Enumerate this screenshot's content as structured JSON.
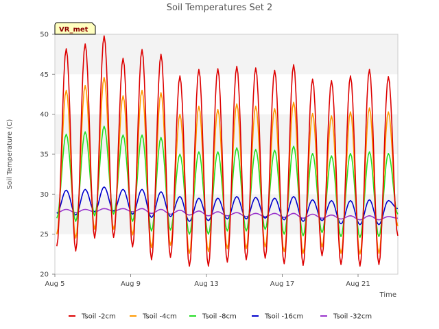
{
  "chart_data": {
    "type": "line",
    "title": "Soil Temperatures Set 2",
    "xlabel": "Time",
    "ylabel": "Soil Temperature (C)",
    "badge": "VR_met",
    "ylim": [
      20,
      50
    ],
    "xlim": [
      5,
      23.1
    ],
    "y_ticks": [
      20,
      25,
      30,
      35,
      40,
      45,
      50
    ],
    "x_ticks": [
      {
        "value": 5,
        "label": "Aug 5"
      },
      {
        "value": 9,
        "label": "Aug 9"
      },
      {
        "value": 13,
        "label": "Aug 13"
      },
      {
        "value": 17,
        "label": "Aug 17"
      },
      {
        "value": 21,
        "label": "Aug 21"
      }
    ],
    "grid": "horizontal banded",
    "legend_position": "bottom",
    "x_unit": "day of August (peak time of daily maximum)",
    "series": [
      {
        "name": "Tsoil -2cm",
        "color": "#dd0000",
        "mean_level": 35,
        "peaks": [
          48.2,
          48.8,
          49.8,
          47.0,
          48.1,
          47.5,
          44.8,
          45.6,
          45.7,
          46.0,
          45.8,
          45.5,
          46.2,
          44.4,
          44.2,
          44.8,
          45.6,
          44.7
        ],
        "troughs": [
          23.5,
          22.9,
          24.5,
          24.6,
          23.4,
          21.8,
          22.1,
          21.0,
          21.0,
          21.5,
          21.8,
          22.0,
          21.3,
          21.1,
          22.3,
          21.2,
          21.0,
          21.2,
          24.8
        ]
      },
      {
        "name": "Tsoil -4cm",
        "color": "#ff9900",
        "peaks": [
          43.0,
          43.6,
          44.6,
          42.3,
          43.0,
          42.7,
          40.0,
          41.0,
          40.6,
          41.3,
          41.0,
          40.7,
          41.5,
          40.1,
          39.8,
          40.3,
          40.8,
          40.3
        ],
        "troughs": [
          25.0,
          24.5,
          25.6,
          25.6,
          24.9,
          23.3,
          23.6,
          22.6,
          22.8,
          23.2,
          23.2,
          23.4,
          22.8,
          22.6,
          23.4,
          22.6,
          22.5,
          22.6,
          26.0
        ]
      },
      {
        "name": "Tsoil -8cm",
        "color": "#22dd22",
        "peaks": [
          37.5,
          37.8,
          38.5,
          37.4,
          37.4,
          37.1,
          35.0,
          35.3,
          35.3,
          35.8,
          35.6,
          35.5,
          36.0,
          35.1,
          34.8,
          35.1,
          35.3,
          35.1
        ],
        "troughs": [
          27.0,
          26.6,
          27.3,
          27.5,
          26.6,
          25.4,
          25.5,
          25.0,
          25.0,
          25.4,
          25.4,
          25.6,
          25.0,
          24.8,
          25.2,
          24.7,
          24.6,
          24.7,
          27.5
        ]
      },
      {
        "name": "Tsoil -16cm",
        "color": "#0000cc",
        "peaks": [
          30.5,
          30.6,
          30.9,
          30.6,
          30.6,
          30.3,
          29.7,
          29.5,
          29.5,
          29.7,
          29.6,
          29.5,
          29.7,
          29.3,
          29.2,
          29.2,
          29.3,
          29.2
        ],
        "troughs": [
          27.6,
          27.4,
          27.8,
          27.9,
          27.5,
          27.1,
          27.2,
          26.6,
          26.7,
          26.9,
          26.9,
          27.0,
          26.8,
          26.6,
          26.7,
          26.3,
          26.2,
          26.2,
          28.2
        ]
      },
      {
        "name": "Tsoil -32cm",
        "color": "#9933cc",
        "peaks": [
          28.1,
          28.1,
          28.2,
          28.2,
          28.2,
          28.1,
          28.0,
          27.9,
          27.8,
          27.7,
          27.6,
          27.6,
          27.6,
          27.5,
          27.4,
          27.3,
          27.3,
          27.2
        ],
        "troughs": [
          27.7,
          27.7,
          27.8,
          27.9,
          27.8,
          27.6,
          27.5,
          27.4,
          27.3,
          27.3,
          27.2,
          27.2,
          27.1,
          27.0,
          27.0,
          26.9,
          26.8,
          26.8,
          27.0
        ]
      }
    ]
  }
}
